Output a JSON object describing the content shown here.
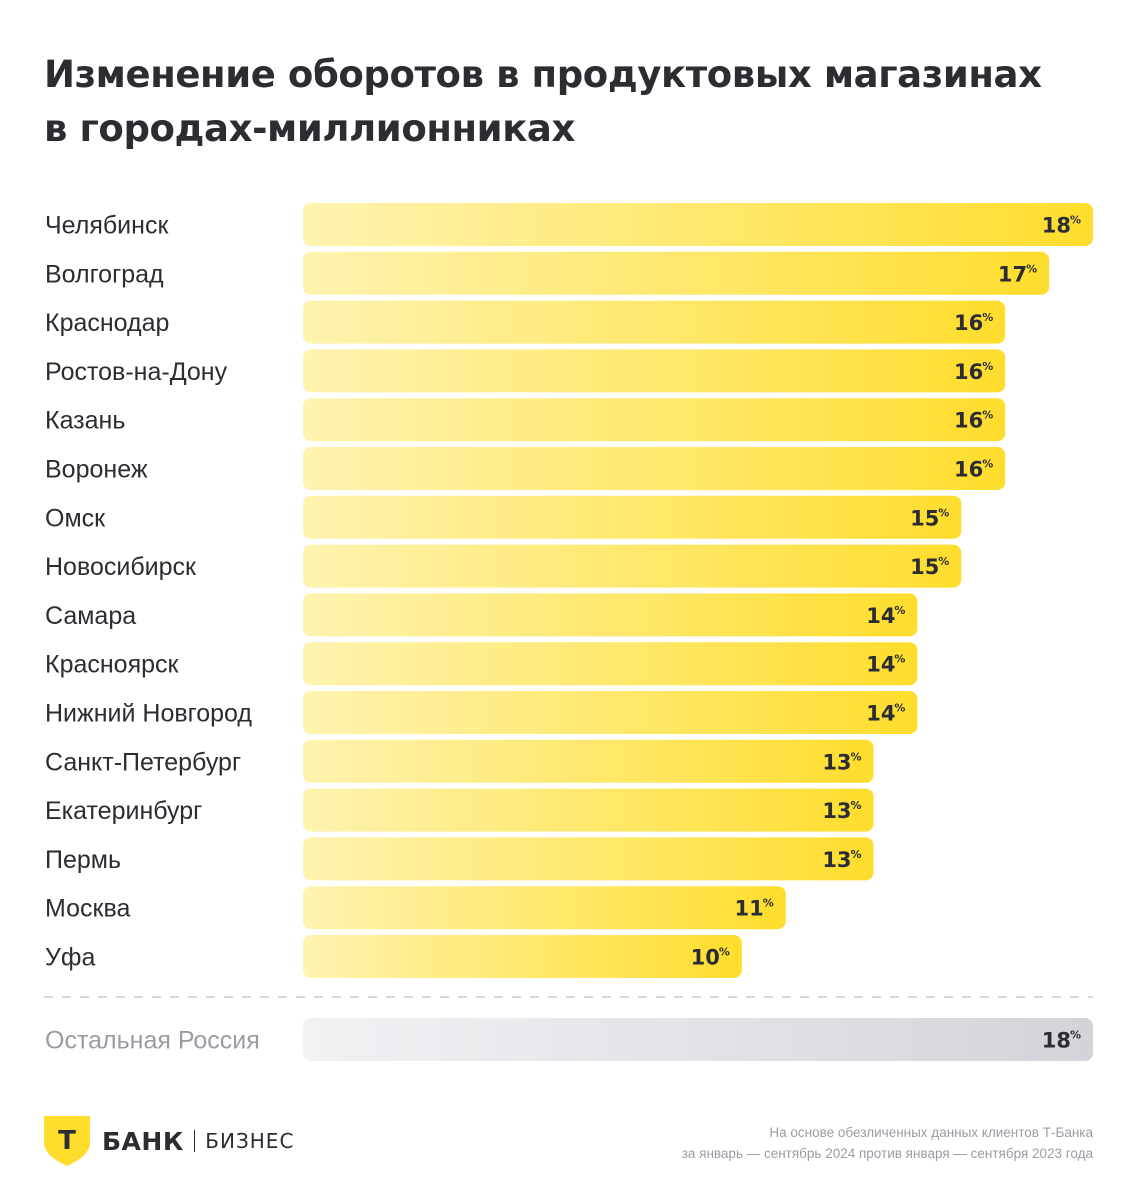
{
  "title_lines": [
    "Изменение оборотов в продуктовых магазинах",
    "в городах-миллионниках"
  ],
  "chart_data": {
    "type": "bar",
    "orientation": "horizontal",
    "title": "Изменение оборотов в продуктовых магазинах в городах-миллионниках",
    "categories": [
      "Челябинск",
      "Волгоград",
      "Краснодар",
      "Ростов-на-Дону",
      "Казань",
      "Воронеж",
      "Омск",
      "Новосибирск",
      "Самара",
      "Красноярск",
      "Нижний  Новгород",
      "Санкт-Петербург",
      "Екатеринбург",
      "Пермь",
      "Москва",
      "Уфа"
    ],
    "values": [
      18,
      17,
      16,
      16,
      16,
      16,
      15,
      15,
      14,
      14,
      14,
      13,
      13,
      13,
      11,
      10
    ],
    "value_suffix": "%",
    "comparison": {
      "label": "Остальная Россия",
      "value": 18
    },
    "xlim": [
      0,
      18
    ],
    "grid": false,
    "legend": "none"
  },
  "colors": {
    "bar_start": "#fff3b0",
    "bar_end": "#ffdd2d",
    "gray_start": "#f1f2f4",
    "gray_end": "#d2d4d9",
    "text": "#2b2d33",
    "muted": "#9a9ca3",
    "logo_yellow": "#ffdd2d"
  },
  "logo": {
    "icon": "t-shield-icon",
    "mark": "Т",
    "bank": "БАНК",
    "biz": "БИЗНЕС"
  },
  "footnote_lines": [
    "На основе обезличенных данных клиентов Т-Банка",
    "за январь — сентябрь 2024 против января — сентября 2023 года"
  ]
}
